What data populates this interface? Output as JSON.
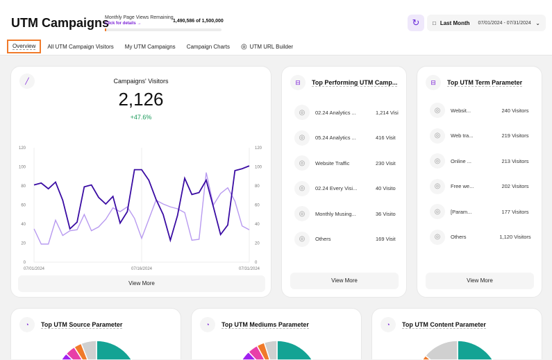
{
  "header": {
    "title": "UTM Campaigns",
    "pv_label": "Monthly Page Views Remaining",
    "pv_link": "Click for details →",
    "pv_count": "1,490,586 of 1,500,000",
    "pv_used_fraction": 0.0063,
    "date_preset": "Last Month",
    "date_range": "07/01/2024 - 07/31/2024"
  },
  "tabs": [
    {
      "label": "Overview",
      "active": true
    },
    {
      "label": "All UTM Campaign Visitors"
    },
    {
      "label": "My UTM Campaigns"
    },
    {
      "label": "Campaign Charts"
    },
    {
      "label": "UTM URL Builder",
      "icon": "fingerprint-icon"
    }
  ],
  "visitors": {
    "title": "Campaigns' Visitors",
    "total": "2,126",
    "change": "+47.6%",
    "view_more": "View More"
  },
  "chart_data": {
    "type": "line",
    "x_ticks": [
      "07/01/2024",
      "07/16/2024",
      "07/31/2024"
    ],
    "y_ticks": [
      0,
      20,
      40,
      60,
      80,
      100,
      120
    ],
    "ylim": [
      0,
      120
    ],
    "grid": "vertical",
    "series": [
      {
        "color": "#3a0ca3",
        "values": [
          81,
          83,
          77,
          84,
          65,
          35,
          42,
          79,
          81,
          68,
          61,
          69,
          41,
          53,
          97,
          97,
          86,
          66,
          50,
          23,
          49,
          88,
          71,
          73,
          86,
          58,
          29,
          39,
          96,
          98,
          101
        ]
      },
      {
        "color": "#b89af0",
        "values": [
          35,
          19,
          19,
          44,
          28,
          33,
          34,
          50,
          33,
          37,
          45,
          57,
          53,
          58,
          46,
          25,
          45,
          65,
          61,
          58,
          56,
          52,
          23,
          24,
          94,
          60,
          72,
          78,
          64,
          38,
          34
        ]
      }
    ]
  },
  "top_campaigns": {
    "title": "Top Performing UTM Camp...",
    "view_more": "View More",
    "items": [
      {
        "name": "02.24 Analytics ...",
        "value": "1,214 Visi"
      },
      {
        "name": "05.24 Analytics ...",
        "value": "416 Visit"
      },
      {
        "name": "Website Traffic",
        "value": "230 Visit"
      },
      {
        "name": "02.24 Every Visi...",
        "value": "40 Visito"
      },
      {
        "name": "Monthly Musing...",
        "value": "36 Visito"
      },
      {
        "name": "Others",
        "value": "169 Visit"
      }
    ]
  },
  "top_terms": {
    "title": "Top UTM Term Parameter",
    "view_more": "View More",
    "items": [
      {
        "name": "Websit...",
        "value": "240 Visitors"
      },
      {
        "name": "Web tra...",
        "value": "219 Visitors"
      },
      {
        "name": "Online ...",
        "value": "213 Visitors"
      },
      {
        "name": "Free we...",
        "value": "202 Visitors"
      },
      {
        "name": "[Param...",
        "value": "177 Visitors"
      },
      {
        "name": "Others",
        "value": "1,120 Visitors"
      }
    ]
  },
  "pies": [
    {
      "title": "Top UTM Source Parameter",
      "slices": [
        {
          "v": 0.57,
          "c": "#14a394"
        },
        {
          "v": 0.23,
          "c": "#3f51b5"
        },
        {
          "v": 0.07,
          "c": "#a020f0"
        },
        {
          "v": 0.04,
          "c": "#e83fa8"
        },
        {
          "v": 0.03,
          "c": "#f07a2a"
        },
        {
          "v": 0.06,
          "c": "#d0d0d0"
        }
      ]
    },
    {
      "title": "Top UTM Mediums Parameter",
      "slices": [
        {
          "v": 0.6,
          "c": "#14a394"
        },
        {
          "v": 0.2,
          "c": "#3f51b5"
        },
        {
          "v": 0.08,
          "c": "#a020f0"
        },
        {
          "v": 0.04,
          "c": "#e83fa8"
        },
        {
          "v": 0.03,
          "c": "#f07a2a"
        },
        {
          "v": 0.05,
          "c": "#d0d0d0"
        }
      ]
    },
    {
      "title": "Top UTM Content Parameter",
      "slices": [
        {
          "v": 0.55,
          "c": "#14a394"
        },
        {
          "v": 0.2,
          "c": "#3f51b5"
        },
        {
          "v": 0.05,
          "c": "#a020f0"
        },
        {
          "v": 0.04,
          "c": "#e83fa8"
        },
        {
          "v": 0.02,
          "c": "#f07a2a"
        },
        {
          "v": 0.14,
          "c": "#d0d0d0"
        }
      ]
    }
  ]
}
